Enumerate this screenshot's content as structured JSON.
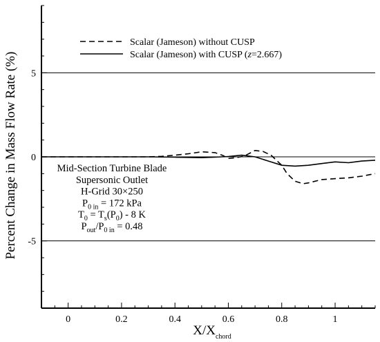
{
  "chart_data": {
    "type": "line",
    "xlabel": {
      "main": "X/X",
      "sub": "chord"
    },
    "ylabel": "Percent Change in Mass Flow Rate (%)",
    "xlim": [
      -0.1,
      1.15
    ],
    "ylim": [
      -9,
      9
    ],
    "xticks": [
      0,
      0.2,
      0.4,
      0.6,
      0.8,
      1
    ],
    "xtick_labels": [
      "0",
      "0.2",
      "0.4",
      "0.6",
      "0.8",
      "1"
    ],
    "yticks": [
      5,
      0,
      -5
    ],
    "ytick_labels": [
      "5",
      "0",
      "-5"
    ],
    "hlines": [
      5,
      0,
      -5
    ],
    "legend": {
      "position": "top",
      "entries": [
        {
          "label": "Scalar (Jameson) without CUSP",
          "style": "dashed"
        },
        {
          "label": "Scalar (Jameson) with CUSP (",
          "italic": "z",
          "label_end": "=2.667)",
          "style": "solid"
        }
      ]
    },
    "annotation": {
      "lines": [
        {
          "parts": [
            {
              "t": "Mid-Section Turbine Blade"
            }
          ]
        },
        {
          "parts": [
            {
              "t": "Supersonic Outlet"
            }
          ]
        },
        {
          "parts": [
            {
              "t": "H-Grid 30×250"
            }
          ]
        },
        {
          "parts": [
            {
              "t": "P"
            },
            {
              "t": "0 in",
              "sub": true
            },
            {
              "t": " = 172 kPa"
            }
          ]
        },
        {
          "parts": [
            {
              "t": "T"
            },
            {
              "t": "0",
              "sub": true
            },
            {
              "t": " = T"
            },
            {
              "t": "s",
              "sub": true
            },
            {
              "t": "(P"
            },
            {
              "t": "0",
              "sub": true
            },
            {
              "t": ") - 8 K"
            }
          ]
        },
        {
          "parts": [
            {
              "t": "P"
            },
            {
              "t": "out",
              "sub": true
            },
            {
              "t": "/P"
            },
            {
              "t": "0 in",
              "sub": true
            },
            {
              "t": " = 0.48"
            }
          ]
        }
      ]
    },
    "series": [
      {
        "label": "Scalar (Jameson) without CUSP",
        "style": "dashed",
        "x": [
          -0.1,
          0.0,
          0.1,
          0.2,
          0.3,
          0.35,
          0.4,
          0.45,
          0.5,
          0.55,
          0.58,
          0.6,
          0.63,
          0.66,
          0.7,
          0.73,
          0.76,
          0.8,
          0.82,
          0.85,
          0.88,
          0.9,
          0.95,
          1.0,
          1.05,
          1.1,
          1.15
        ],
        "y": [
          0,
          0,
          0,
          0,
          0,
          0.03,
          0.1,
          0.18,
          0.3,
          0.25,
          0.08,
          -0.1,
          -0.05,
          0.05,
          0.38,
          0.32,
          0.1,
          -0.5,
          -1.0,
          -1.45,
          -1.6,
          -1.55,
          -1.35,
          -1.3,
          -1.25,
          -1.15,
          -1.0
        ]
      },
      {
        "label": "Scalar (Jameson) with CUSP (z=2.667)",
        "style": "solid",
        "x": [
          -0.1,
          0.0,
          0.1,
          0.2,
          0.3,
          0.4,
          0.5,
          0.55,
          0.6,
          0.65,
          0.7,
          0.75,
          0.8,
          0.85,
          0.9,
          0.95,
          1.0,
          1.05,
          1.1,
          1.15
        ],
        "y": [
          0,
          0,
          0,
          0,
          0,
          -0.02,
          -0.05,
          -0.02,
          0.02,
          0.1,
          0.0,
          -0.25,
          -0.5,
          -0.55,
          -0.5,
          -0.4,
          -0.3,
          -0.35,
          -0.25,
          -0.2
        ]
      }
    ]
  }
}
